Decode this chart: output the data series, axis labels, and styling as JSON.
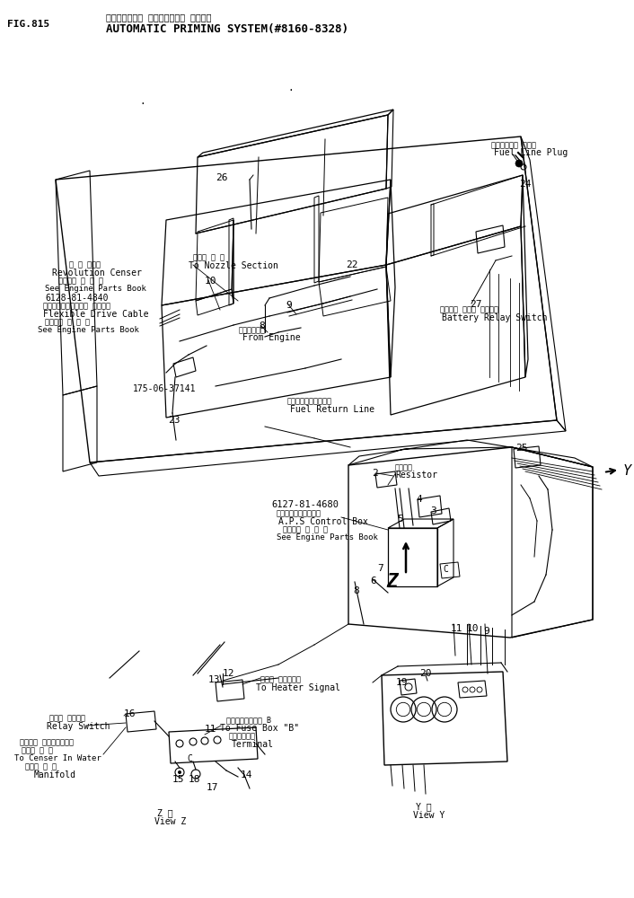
{
  "fig_bg": "#ffffff",
  "fig_label": "FIG.815",
  "title_jp": "オートマチック プライミング・ システム",
  "title_en": "AUTOMATIC PRIMING SYSTEM(#8160-8328)"
}
